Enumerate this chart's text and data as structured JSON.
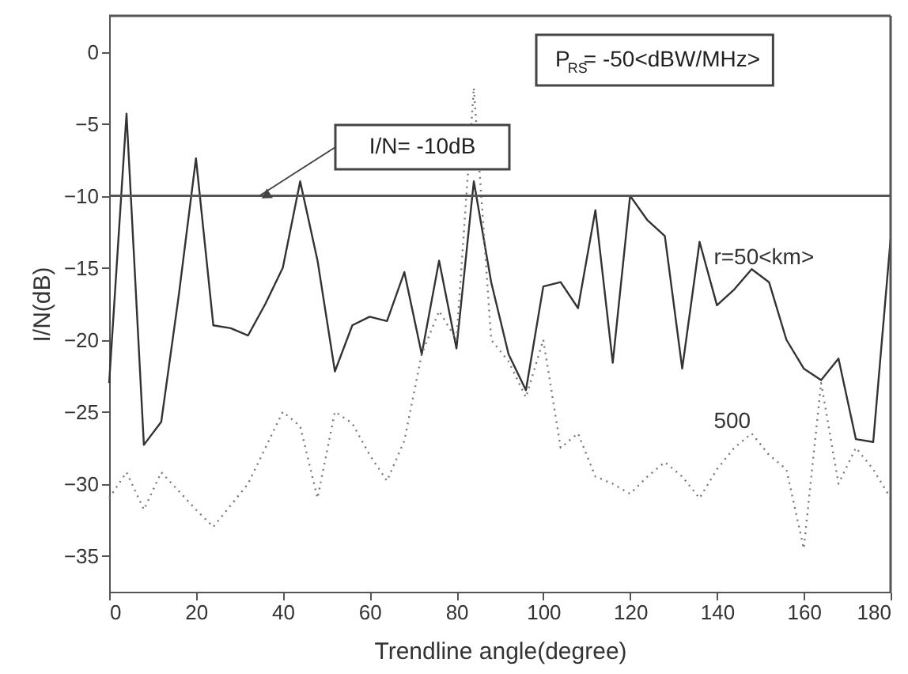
{
  "chart_data": {
    "type": "line",
    "xlabel": "Trendline angle(degree)",
    "ylabel": "I/N(dB)",
    "x": [
      0,
      4,
      8,
      12,
      16,
      20,
      24,
      28,
      32,
      36,
      40,
      44,
      48,
      52,
      56,
      60,
      64,
      68,
      72,
      76,
      80,
      84,
      88,
      92,
      96,
      100,
      104,
      108,
      112,
      116,
      120,
      124,
      128,
      132,
      136,
      140,
      144,
      148,
      152,
      156,
      160,
      164,
      168,
      172,
      176,
      180
    ],
    "series": [
      {
        "name": "r=50<km>",
        "color": "#333333",
        "line_style": "solid",
        "values": [
          -23,
          -4.3,
          -27.3,
          -25.7,
          -17,
          -7.4,
          -19,
          -19.2,
          -19.7,
          -17.5,
          -15,
          -9,
          -14.5,
          -22.2,
          -19,
          -18.4,
          -18.7,
          -15.3,
          -21,
          -14.5,
          -20.6,
          -9,
          -16,
          -21,
          -23.5,
          -16.3,
          -16,
          -17.8,
          -11,
          -21.6,
          -10,
          -11.7,
          -12.8,
          -22,
          -13.2,
          -17.6,
          -16.5,
          -15.1,
          -16,
          -20,
          -22,
          -22.8,
          -21.3,
          -26.9,
          -27.1,
          -13
        ]
      },
      {
        "name": "500",
        "color": "#777777",
        "line_style": "dotted",
        "values": [
          -31,
          -29.2,
          -31.8,
          -29.2,
          -30.5,
          -31.8,
          -33,
          -31.5,
          -30,
          -27.5,
          -25,
          -26,
          -31,
          -25,
          -25.8,
          -28,
          -29.8,
          -27,
          -21,
          -18,
          -20,
          -2.5,
          -20,
          -21.5,
          -24,
          -20,
          -27.5,
          -26.5,
          -29.5,
          -30,
          -30.7,
          -29.5,
          -28.5,
          -29.5,
          -31,
          -29,
          -27.5,
          -26.5,
          -28,
          -29,
          -34.5,
          -23,
          -30,
          -27.5,
          -29,
          -31
        ]
      }
    ],
    "xlim": [
      0,
      180
    ],
    "xticks": [
      0,
      20,
      40,
      60,
      80,
      100,
      120,
      140,
      160,
      180
    ],
    "ylim": [
      -37.5,
      2.5
    ],
    "yticks": [
      -35,
      -30,
      -25,
      -20,
      -15,
      -10,
      -5,
      0
    ],
    "ref_lines": [
      {
        "axis": "y",
        "value": -10
      }
    ],
    "annotations": [
      "I/N= -10dB",
      "P$_{RS}$= -50<dBW/MHz>"
    ],
    "grid": false
  }
}
